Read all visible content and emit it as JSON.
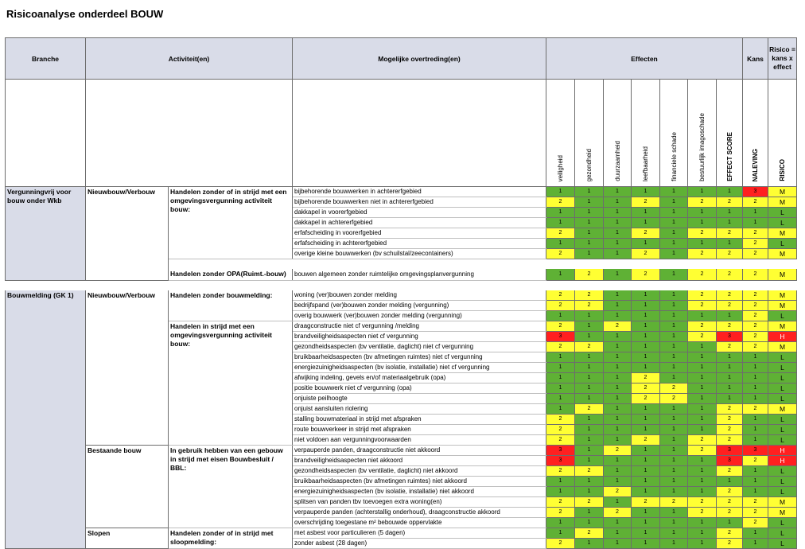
{
  "title": "Risicoanalyse onderdeel BOUW",
  "headers": {
    "branche": "Branche",
    "activiteit": "Activiteit(en)",
    "overtreding": "Mogelijke overtreding(en)",
    "effecten": "Effecten",
    "kans": "Kans",
    "risico": "Risico = kans x effect",
    "effect_cols": [
      "veiligheid",
      "gezondheid",
      "duurzaamheid",
      "leefbaarheid",
      "financiele schade",
      "bestuurlijk imagoschade"
    ],
    "effect_score": "EFFECT SCORE",
    "naleving": "NALEVING",
    "risico_col": "RISICO"
  },
  "sections": [
    {
      "branche": "Vergunningvrij voor bouw onder Wkb",
      "groups": [
        {
          "sub": "Nieuwbouw/Verbouw",
          "activities": [
            {
              "activiteit": "Handelen zonder of in strijd met een omgevingsvergunning activiteit bouw:",
              "rows": [
                {
                  "o": "bijbehorende bouwwerken in achtererfgebied",
                  "s": [
                    1,
                    1,
                    1,
                    1,
                    1,
                    1,
                    1,
                    3
                  ],
                  "r": "M"
                },
                {
                  "o": "bijbehorende bouwwerken niet in achtererfgebied",
                  "s": [
                    2,
                    1,
                    1,
                    2,
                    1,
                    2,
                    2,
                    2
                  ],
                  "r": "M"
                },
                {
                  "o": "dakkapel in voorerfgebied",
                  "s": [
                    1,
                    1,
                    1,
                    1,
                    1,
                    1,
                    1,
                    1
                  ],
                  "r": "L"
                },
                {
                  "o": "dakkapel in achtererfgebied",
                  "s": [
                    1,
                    1,
                    1,
                    1,
                    1,
                    1,
                    1,
                    1
                  ],
                  "r": "L"
                },
                {
                  "o": "erfafscheiding in voorerfgebied",
                  "s": [
                    2,
                    1,
                    1,
                    2,
                    1,
                    2,
                    2,
                    2
                  ],
                  "r": "M"
                },
                {
                  "o": "erfafscheiding in achtererfgebied",
                  "s": [
                    1,
                    1,
                    1,
                    1,
                    1,
                    1,
                    1,
                    2
                  ],
                  "r": "L"
                },
                {
                  "o": "overige kleine bouwwerken (bv schuilstal/zeecontainers)",
                  "s": [
                    2,
                    1,
                    1,
                    2,
                    1,
                    2,
                    2,
                    2
                  ],
                  "r": "M"
                }
              ]
            },
            {
              "activiteit": "Handelen zonder OPA(Ruimt.-bouw)",
              "gapBefore": true,
              "rows": [
                {
                  "o": "bouwen algemeen zonder ruimtelijke omgevingsplanvergunning",
                  "s": [
                    1,
                    2,
                    1,
                    2,
                    1,
                    2,
                    2,
                    2
                  ],
                  "r": "M"
                }
              ]
            }
          ]
        }
      ]
    },
    {
      "branche": "Bouwmelding (GK 1)",
      "groups": [
        {
          "sub": "Nieuwbouw/Verbouw",
          "activities": [
            {
              "activiteit": "Handelen zonder bouwmelding:",
              "rows": [
                {
                  "o": "woning (ver)bouwen zonder melding",
                  "s": [
                    2,
                    2,
                    1,
                    1,
                    1,
                    2,
                    2,
                    2
                  ],
                  "r": "M"
                },
                {
                  "o": "bedrijfspand (ver)bouwen zonder melding (vergunning)",
                  "s": [
                    2,
                    2,
                    1,
                    1,
                    1,
                    2,
                    2,
                    2
                  ],
                  "r": "M"
                },
                {
                  "o": "overig bouwwerk (ver)bouwen zonder melding (vergunning)",
                  "s": [
                    1,
                    1,
                    1,
                    1,
                    1,
                    1,
                    1,
                    2
                  ],
                  "r": "L"
                }
              ]
            },
            {
              "activiteit": "Handelen in strijd met een omgevingsvergunning activiteit bouw:",
              "rows": [
                {
                  "o": "draagconstructie niet cf vergunning /melding",
                  "s": [
                    2,
                    1,
                    2,
                    1,
                    1,
                    2,
                    2,
                    2
                  ],
                  "r": "M"
                },
                {
                  "o": "brandveiligheidsaspecten niet cf vergunning",
                  "s": [
                    3,
                    1,
                    1,
                    1,
                    1,
                    2,
                    3,
                    2
                  ],
                  "r": "H"
                },
                {
                  "o": "gezondheidsaspecten (bv ventilatie, daglicht) niet cf vergunning",
                  "s": [
                    2,
                    2,
                    1,
                    1,
                    1,
                    1,
                    2,
                    2
                  ],
                  "r": "M"
                },
                {
                  "o": "bruikbaarheidsaspecten (bv afmetingen ruimtes) niet cf vergunning",
                  "s": [
                    1,
                    1,
                    1,
                    1,
                    1,
                    1,
                    1,
                    1
                  ],
                  "r": "L"
                },
                {
                  "o": "energiezuinigheidsaspecten (bv isolatie, installatie) niet cf vergunning",
                  "s": [
                    1,
                    1,
                    1,
                    1,
                    1,
                    1,
                    1,
                    1
                  ],
                  "r": "L"
                },
                {
                  "o": "afwijking indeling, gevels en/of materiaalgebruik (opa)",
                  "s": [
                    1,
                    1,
                    1,
                    2,
                    1,
                    1,
                    1,
                    1
                  ],
                  "r": "L"
                },
                {
                  "o": "positie bouwwerk niet cf vergunning (opa)",
                  "s": [
                    1,
                    1,
                    1,
                    2,
                    2,
                    1,
                    1,
                    1
                  ],
                  "r": "L"
                },
                {
                  "o": "onjuiste peilhoogte",
                  "s": [
                    1,
                    1,
                    1,
                    2,
                    2,
                    1,
                    1,
                    1
                  ],
                  "r": "L"
                },
                {
                  "o": "onjuist aansluiten riolering",
                  "s": [
                    1,
                    2,
                    1,
                    1,
                    1,
                    1,
                    2,
                    2
                  ],
                  "r": "M"
                },
                {
                  "o": "stalling bouwmateriaal in strijd met afspraken",
                  "s": [
                    2,
                    1,
                    1,
                    1,
                    1,
                    1,
                    2,
                    1
                  ],
                  "r": "L"
                },
                {
                  "o": "route bouwverkeer in strijd met afspraken",
                  "s": [
                    2,
                    1,
                    1,
                    1,
                    1,
                    1,
                    2,
                    1
                  ],
                  "r": "L"
                },
                {
                  "o": "niet voldoen aan vergunningvoorwaarden",
                  "s": [
                    2,
                    1,
                    1,
                    2,
                    1,
                    2,
                    2,
                    1
                  ],
                  "r": "L"
                }
              ]
            }
          ]
        },
        {
          "sub": "Bestaande bouw",
          "activities": [
            {
              "activiteit": "In gebruik hebben van een gebouw in strijd met eisen Bouwbesluit / BBL:",
              "rows": [
                {
                  "o": "verpauperde panden, draagconstructie niet akkoord",
                  "s": [
                    3,
                    1,
                    2,
                    1,
                    1,
                    2,
                    3,
                    3
                  ],
                  "r": "H"
                },
                {
                  "o": "brandveiligheidsaspecten niet akkoord",
                  "s": [
                    3,
                    1,
                    1,
                    1,
                    1,
                    1,
                    3,
                    2
                  ],
                  "r": "H"
                },
                {
                  "o": "gezondheidsaspecten (bv ventilatie, daglicht) niet akkoord",
                  "s": [
                    2,
                    2,
                    1,
                    1,
                    1,
                    1,
                    2,
                    1
                  ],
                  "r": "L"
                },
                {
                  "o": "bruikbaarheidsaspecten (bv afmetingen ruimtes) niet akkoord",
                  "s": [
                    1,
                    1,
                    1,
                    1,
                    1,
                    1,
                    1,
                    1
                  ],
                  "r": "L"
                },
                {
                  "o": "energiezuinigheidsaspecten (bv isolatie, installatie) niet akkoord",
                  "s": [
                    1,
                    1,
                    2,
                    1,
                    1,
                    1,
                    2,
                    1
                  ],
                  "r": "L"
                },
                {
                  "o": "splitsen van panden tbv toevoegen extra woning(en)",
                  "s": [
                    2,
                    2,
                    1,
                    2,
                    2,
                    2,
                    2,
                    2
                  ],
                  "r": "M"
                },
                {
                  "o": "verpauperde panden (achterstallig onderhoud), draagconstructie akkoord",
                  "s": [
                    2,
                    1,
                    2,
                    1,
                    1,
                    2,
                    2,
                    2
                  ],
                  "r": "M"
                },
                {
                  "o": "overschrijding toegestane m² bebouwde oppervlakte",
                  "s": [
                    1,
                    1,
                    1,
                    1,
                    1,
                    1,
                    1,
                    2
                  ],
                  "r": "L"
                }
              ]
            }
          ]
        },
        {
          "sub": "Slopen",
          "activities": [
            {
              "activiteit": "Handelen zonder of in strijd met sloopmelding:",
              "rows": [
                {
                  "o": "met asbest voor particulieren (5 dagen)",
                  "s": [
                    1,
                    2,
                    1,
                    1,
                    1,
                    1,
                    2,
                    1
                  ],
                  "r": "L"
                },
                {
                  "o": "zonder asbest (28 dagen)",
                  "s": [
                    2,
                    1,
                    1,
                    1,
                    1,
                    1,
                    2,
                    1
                  ],
                  "r": "L"
                }
              ]
            }
          ]
        }
      ]
    }
  ]
}
